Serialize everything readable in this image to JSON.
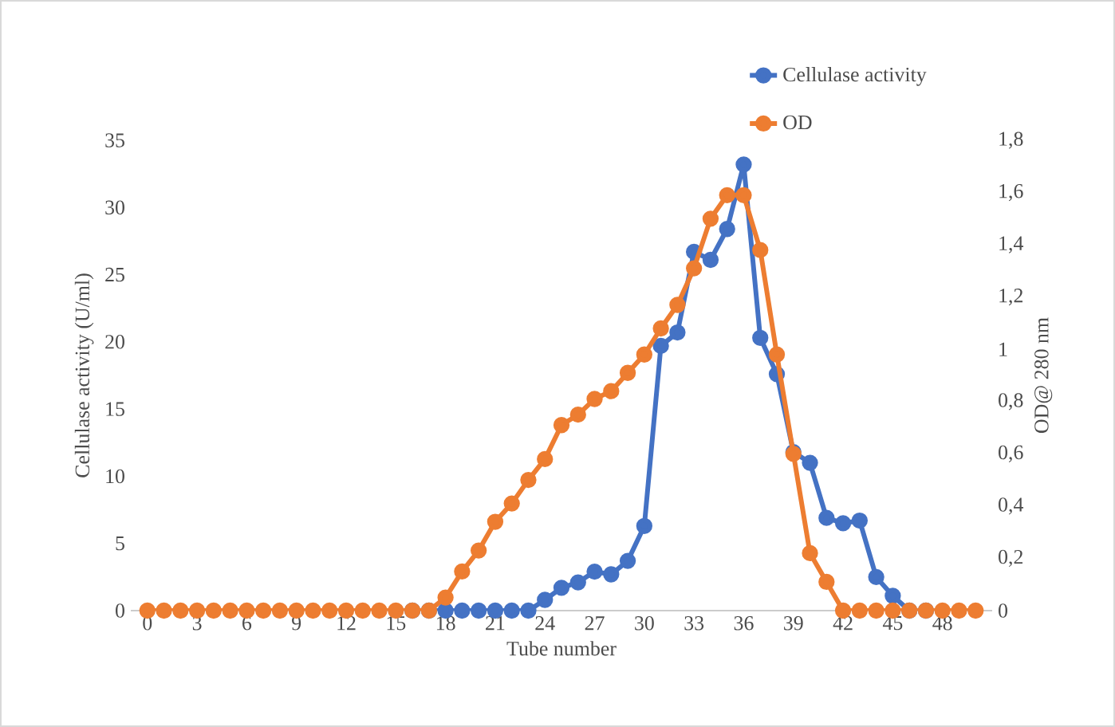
{
  "chart_data": {
    "type": "line",
    "xlabel": "Tube number",
    "ylabel": "Cellulase activity (U/ml)",
    "y2label": "OD@ 280 nm",
    "categories": [
      "0",
      null,
      null,
      "3",
      null,
      null,
      "6",
      null,
      null,
      "9",
      null,
      null,
      "12",
      null,
      null,
      "15",
      null,
      null,
      "18",
      null,
      null,
      "21",
      null,
      null,
      "24",
      null,
      null,
      "27",
      null,
      null,
      "30",
      null,
      null,
      "33",
      null,
      null,
      "36",
      null,
      null,
      "39",
      null,
      null,
      "42",
      null,
      null,
      "45",
      null,
      null,
      "48",
      null,
      null
    ],
    "series": [
      {
        "name": "Cellulase activity",
        "color": "#4472c4",
        "values": [
          null,
          null,
          null,
          null,
          null,
          null,
          null,
          null,
          null,
          null,
          null,
          null,
          null,
          null,
          null,
          null,
          0,
          0,
          0,
          0,
          0,
          0,
          0,
          0,
          0.8,
          1.7,
          2.1,
          2.9,
          2.7,
          3.7,
          6.3,
          19.7,
          20.7,
          26.7,
          26.1,
          28.4,
          33.2,
          20.3,
          17.6,
          11.8,
          11.0,
          6.9,
          6.5,
          6.7,
          2.5,
          1.1,
          0,
          0,
          null,
          null,
          null
        ]
      },
      {
        "name": "OD",
        "color": "#ed7d31",
        "axis": "y2",
        "values": [
          0,
          0,
          0,
          0,
          0,
          0,
          0,
          0,
          0,
          0,
          0,
          0,
          0,
          0,
          0,
          0,
          0,
          0,
          0.05,
          0.15,
          0.23,
          0.34,
          0.41,
          0.5,
          0.58,
          0.71,
          0.75,
          0.81,
          0.84,
          0.91,
          0.98,
          1.08,
          1.17,
          1.31,
          1.5,
          1.59,
          1.59,
          1.38,
          0.98,
          0.6,
          0.22,
          0.11,
          0,
          0,
          0,
          0,
          0,
          0,
          0,
          0,
          0
        ]
      }
    ],
    "ylim": [
      0,
      35
    ],
    "yticks": [
      0,
      5,
      10,
      15,
      20,
      25,
      30,
      35
    ],
    "y2lim": [
      0,
      1.8
    ],
    "y2ticks": [
      0,
      {
        "value": 0.2,
        "label": "0,2"
      },
      {
        "value": 0.4,
        "label": "0,4"
      },
      {
        "value": 0.6,
        "label": "0,6"
      },
      {
        "value": 0.8,
        "label": "0,8"
      },
      1,
      {
        "value": 1.2,
        "label": "1,2"
      },
      {
        "value": 1.4,
        "label": "1,4"
      },
      {
        "value": 1.6,
        "label": "1,6"
      },
      {
        "value": 1.8,
        "label": "1,8"
      }
    ],
    "legend": "top right",
    "marker": "circle",
    "line_style": "solid"
  }
}
